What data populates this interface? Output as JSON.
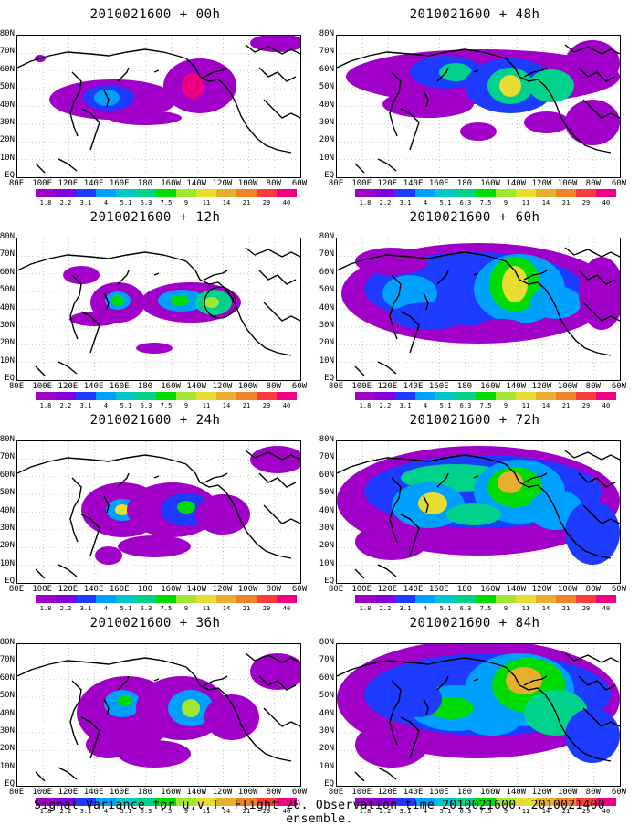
{
  "caption": "Signal Variance for u,v,T. Flight 20. Observation time 2010021600. 2010021400 ensemble.",
  "lat_labels": [
    "80N",
    "70N",
    "60N",
    "50N",
    "40N",
    "30N",
    "20N",
    "10N",
    "EQ"
  ],
  "lon_labels": [
    "80E",
    "100E",
    "120E",
    "140E",
    "160E",
    "180",
    "160W",
    "140W",
    "120W",
    "100W",
    "80W",
    "60W"
  ],
  "colorbar": {
    "labels": [
      "1.8",
      "2.2",
      "3.1",
      "4",
      "5.1",
      "6.3",
      "7.5",
      "9",
      "11",
      "14",
      "21",
      "29",
      "40"
    ],
    "colors": [
      "#a000c8",
      "#8200dc",
      "#1e3cff",
      "#00a0ff",
      "#00c8c8",
      "#00d28c",
      "#00dc00",
      "#a0e632",
      "#e6dc32",
      "#e6af2d",
      "#f08228",
      "#fa3c3c",
      "#f00082"
    ]
  },
  "panels": [
    {
      "title": "2010021600 + 00h"
    },
    {
      "title": "2010021600 + 48h"
    },
    {
      "title": "2010021600 + 12h"
    },
    {
      "title": "2010021600 + 60h"
    },
    {
      "title": "2010021600 + 24h"
    },
    {
      "title": "2010021600 + 72h"
    },
    {
      "title": "2010021600 + 36h"
    },
    {
      "title": "2010021600 + 84h"
    }
  ]
}
